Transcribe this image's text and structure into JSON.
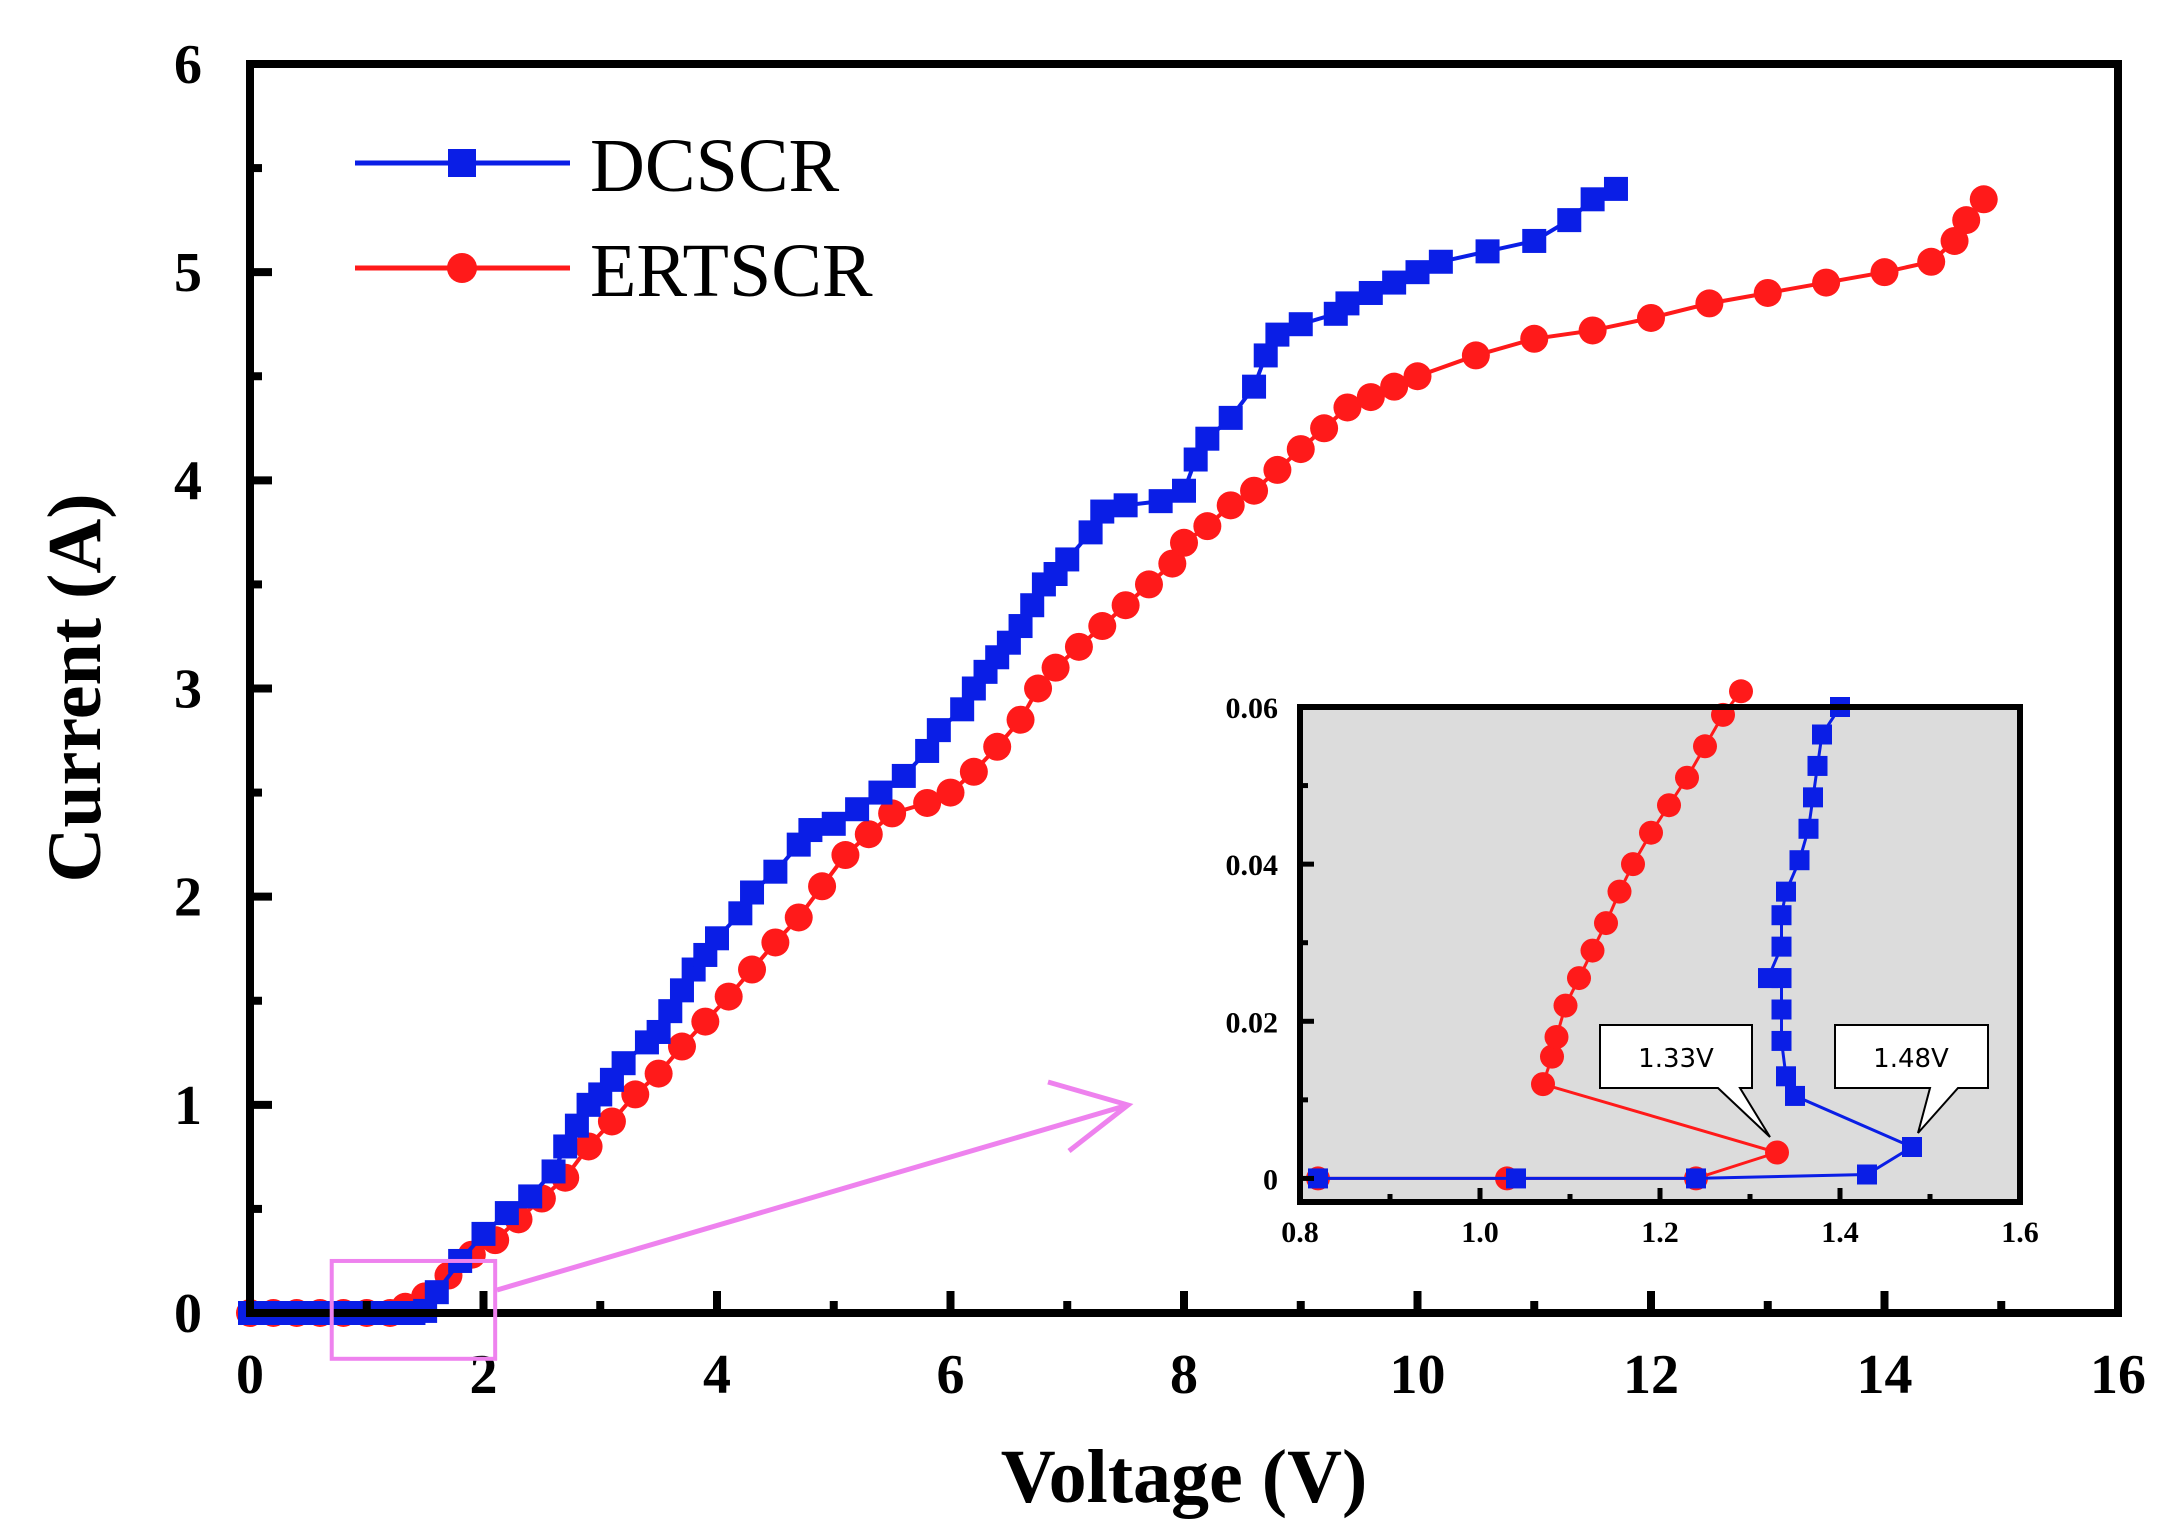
{
  "chart_data": [
    {
      "id": "main",
      "type": "line",
      "title": "",
      "xlabel": "Voltage (V)",
      "ylabel": "Current (A)",
      "xlim": [
        0,
        16
      ],
      "ylim": [
        0,
        6
      ],
      "xticks": [
        "0",
        "2",
        "4",
        "6",
        "8",
        "10",
        "12",
        "14",
        "16"
      ],
      "yticks": [
        "0",
        "1",
        "2",
        "3",
        "4",
        "5",
        "6"
      ],
      "grid": false,
      "legend_position": "top-left",
      "series": [
        {
          "name": "DCSCR",
          "color": "#0a1ee6",
          "marker": "square",
          "x": [
            0.0,
            0.2,
            0.4,
            0.6,
            0.8,
            1.0,
            1.2,
            1.4,
            1.5,
            1.6,
            1.8,
            2.0,
            2.2,
            2.4,
            2.6,
            2.7,
            2.8,
            2.9,
            3.0,
            3.1,
            3.2,
            3.4,
            3.5,
            3.6,
            3.7,
            3.8,
            3.9,
            4.0,
            4.2,
            4.3,
            4.5,
            4.7,
            4.8,
            5.0,
            5.2,
            5.4,
            5.6,
            5.8,
            5.9,
            6.1,
            6.2,
            6.3,
            6.4,
            6.5,
            6.6,
            6.7,
            6.8,
            6.9,
            7.0,
            7.2,
            7.3,
            7.5,
            7.8,
            8.0,
            8.1,
            8.2,
            8.4,
            8.6,
            8.7,
            8.8,
            9.0,
            9.3,
            9.4,
            9.6,
            9.8,
            10.0,
            10.2,
            10.6,
            11.0,
            11.3,
            11.5,
            11.7
          ],
          "y": [
            0.0,
            0.0,
            0.0,
            0.0,
            0.0,
            0.0,
            0.0,
            0.0,
            0.01,
            0.1,
            0.25,
            0.38,
            0.48,
            0.56,
            0.68,
            0.8,
            0.9,
            1.0,
            1.05,
            1.12,
            1.2,
            1.3,
            1.35,
            1.45,
            1.55,
            1.65,
            1.72,
            1.8,
            1.92,
            2.02,
            2.12,
            2.25,
            2.32,
            2.35,
            2.42,
            2.5,
            2.58,
            2.7,
            2.8,
            2.9,
            3.0,
            3.08,
            3.15,
            3.22,
            3.3,
            3.4,
            3.5,
            3.55,
            3.62,
            3.75,
            3.85,
            3.88,
            3.9,
            3.95,
            4.1,
            4.2,
            4.3,
            4.45,
            4.6,
            4.7,
            4.75,
            4.8,
            4.85,
            4.9,
            4.95,
            5.0,
            5.05,
            5.1,
            5.15,
            5.25,
            5.35,
            5.4
          ]
        },
        {
          "name": "ERTSCR",
          "color": "#ff1a1a",
          "marker": "circle",
          "x": [
            0.0,
            0.2,
            0.4,
            0.6,
            0.8,
            1.0,
            1.2,
            1.33,
            1.5,
            1.7,
            1.9,
            2.1,
            2.3,
            2.5,
            2.7,
            2.9,
            3.1,
            3.3,
            3.5,
            3.7,
            3.9,
            4.1,
            4.3,
            4.5,
            4.7,
            4.9,
            5.1,
            5.3,
            5.5,
            5.8,
            6.0,
            6.2,
            6.4,
            6.6,
            6.75,
            6.9,
            7.1,
            7.3,
            7.5,
            7.7,
            7.9,
            8.0,
            8.2,
            8.4,
            8.6,
            8.8,
            9.0,
            9.2,
            9.4,
            9.6,
            9.8,
            10.0,
            10.5,
            11.0,
            11.5,
            12.0,
            12.5,
            13.0,
            13.5,
            14.0,
            14.4,
            14.6,
            14.7,
            14.85
          ],
          "y": [
            0.0,
            0.0,
            0.0,
            0.0,
            0.0,
            0.0,
            0.0,
            0.03,
            0.08,
            0.18,
            0.28,
            0.35,
            0.45,
            0.55,
            0.65,
            0.8,
            0.92,
            1.05,
            1.15,
            1.28,
            1.4,
            1.52,
            1.65,
            1.78,
            1.9,
            2.05,
            2.2,
            2.3,
            2.4,
            2.45,
            2.5,
            2.6,
            2.72,
            2.85,
            3.0,
            3.1,
            3.2,
            3.3,
            3.4,
            3.5,
            3.6,
            3.7,
            3.78,
            3.88,
            3.95,
            4.05,
            4.15,
            4.25,
            4.35,
            4.4,
            4.45,
            4.5,
            4.6,
            4.68,
            4.72,
            4.78,
            4.85,
            4.9,
            4.95,
            5.0,
            5.05,
            5.15,
            5.25,
            5.35
          ]
        }
      ],
      "zoom_box": {
        "x_range": [
          0.7,
          2.1
        ],
        "y_range": [
          -0.22,
          0.25
        ]
      }
    },
    {
      "id": "inset",
      "type": "line",
      "title": "",
      "xlabel": "",
      "ylabel": "",
      "xlim": [
        0.8,
        1.6
      ],
      "ylim": [
        -0.003,
        0.06
      ],
      "xticks": [
        "0.8",
        "1.0",
        "1.2",
        "1.4",
        "1.6"
      ],
      "yticks": [
        "0",
        "0.02",
        "0.04",
        "0.06"
      ],
      "background": "#dcdcdc",
      "series": [
        {
          "name": "DCSCR",
          "color": "#0a1ee6",
          "marker": "square",
          "x": [
            0.82,
            1.04,
            1.24,
            1.43,
            1.48,
            1.35,
            1.34,
            1.335,
            1.335,
            1.335,
            1.32,
            1.335,
            1.335,
            1.34,
            1.355,
            1.365,
            1.37,
            1.375,
            1.38,
            1.4
          ],
          "y": [
            0.0,
            0.0,
            0.0,
            0.0005,
            0.004,
            0.0105,
            0.013,
            0.0175,
            0.0215,
            0.0255,
            0.0255,
            0.0295,
            0.0335,
            0.0365,
            0.0405,
            0.0445,
            0.0485,
            0.0525,
            0.0565,
            0.06
          ]
        },
        {
          "name": "ERTSCR",
          "color": "#ff1a1a",
          "marker": "circle",
          "x": [
            0.82,
            1.03,
            1.24,
            1.33,
            1.07,
            1.08,
            1.085,
            1.095,
            1.11,
            1.125,
            1.14,
            1.155,
            1.17,
            1.19,
            1.21,
            1.23,
            1.25,
            1.27,
            1.29
          ],
          "y": [
            0.0,
            0.0,
            0.0,
            0.0033,
            0.012,
            0.0155,
            0.018,
            0.022,
            0.0255,
            0.029,
            0.0325,
            0.0365,
            0.04,
            0.044,
            0.0475,
            0.051,
            0.055,
            0.059,
            0.062
          ]
        }
      ],
      "annotations": [
        {
          "text": "1.33V",
          "x": 1.33,
          "y": 0.0033
        },
        {
          "text": "1.48V",
          "x": 1.48,
          "y": 0.004
        }
      ]
    }
  ],
  "colors": {
    "axis": "#000000",
    "zoom_box": "#ee82ee",
    "arrow": "#ee82ee",
    "callout_fill": "#ffffff"
  }
}
